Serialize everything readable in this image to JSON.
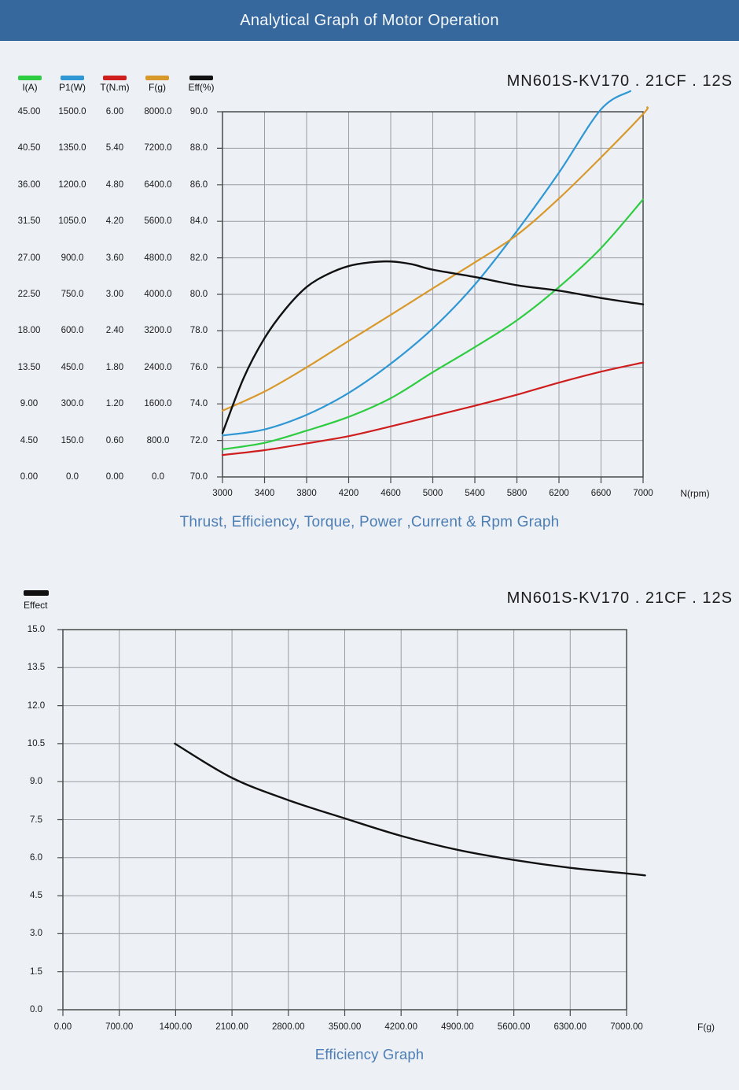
{
  "header": {
    "title": "Analytical Graph of Motor Operation",
    "bg_color": "#36689d"
  },
  "charts": [
    {
      "title": "MN601S-KV170 . 21CF . 12S",
      "caption": "Thrust, Efficiency, Torque, Power ,Current & Rpm Graph",
      "x_axis_unit": "N(rpm)",
      "x_tick_labels": [
        "3000",
        "3400",
        "3800",
        "4200",
        "4600",
        "5000",
        "5400",
        "5800",
        "6200",
        "6600",
        "7000"
      ],
      "tick_columns": [
        {
          "axis": "I(A)",
          "labels": [
            "45.00",
            "40.50",
            "36.00",
            "31.50",
            "27.00",
            "22.50",
            "18.00",
            "13.50",
            "9.00",
            "4.50",
            "0.00"
          ]
        },
        {
          "axis": "P1(W)",
          "labels": [
            "1500.0",
            "1350.0",
            "1200.0",
            "1050.0",
            "900.0",
            "750.0",
            "600.0",
            "450.0",
            "300.0",
            "150.0",
            "0.0"
          ]
        },
        {
          "axis": "T(N.m)",
          "labels": [
            "6.00",
            "5.40",
            "4.80",
            "4.20",
            "3.60",
            "3.00",
            "2.40",
            "1.80",
            "1.20",
            "0.60",
            "0.00"
          ]
        },
        {
          "axis": "F(g)",
          "labels": [
            "8000.0",
            "7200.0",
            "6400.0",
            "5600.0",
            "4800.0",
            "4000.0",
            "3200.0",
            "2400.0",
            "1600.0",
            "800.0",
            "0.0"
          ]
        },
        {
          "axis": "Eff(%)",
          "labels": [
            "90.0",
            "88.0",
            "86.0",
            "84.0",
            "82.0",
            "80.0",
            "78.0",
            "76.0",
            "74.0",
            "72.0",
            "70.0"
          ]
        }
      ],
      "legend": [
        {
          "label": "I(A)",
          "color": "#2ecc40"
        },
        {
          "label": "P1(W)",
          "color": "#2e97d4"
        },
        {
          "label": "T(N.m)",
          "color": "#cf1e1e"
        },
        {
          "label": "F(g)",
          "color": "#d8992a"
        },
        {
          "label": "Eff(%)",
          "color": "#111111"
        }
      ]
    },
    {
      "title": "MN601S-KV170 . 21CF . 12S",
      "caption": "Efficiency Graph",
      "x_axis_unit": "F(g)",
      "x_tick_labels": [
        "0.00",
        "700.00",
        "1400.00",
        "2100.00",
        "2800.00",
        "3500.00",
        "4200.00",
        "4900.00",
        "5600.00",
        "6300.00",
        "7000.00"
      ],
      "y_tick_labels": [
        "15.0",
        "13.5",
        "12.0",
        "10.5",
        "9.0",
        "7.5",
        "6.0",
        "4.5",
        "3.0",
        "1.5",
        "0.0"
      ],
      "legend": [
        {
          "label": "Effect",
          "color": "#111111"
        }
      ]
    }
  ],
  "chart_data": [
    {
      "type": "line",
      "title": "MN601S-KV170 . 21CF . 12S",
      "xlabel": "N(rpm)",
      "xlim": [
        3000,
        7000
      ],
      "grid": true,
      "legend_position": "top-left",
      "series": [
        {
          "name": "I(A)",
          "color": "#2ecc40",
          "axis_range": [
            0,
            45
          ],
          "x": [
            3000,
            3400,
            3800,
            4200,
            4600,
            5000,
            5400,
            5800,
            6200,
            6600,
            7000
          ],
          "values": [
            3.4,
            4.2,
            5.7,
            7.4,
            9.7,
            12.9,
            16.0,
            19.3,
            23.4,
            28.2,
            34.2
          ]
        },
        {
          "name": "P1(W)",
          "color": "#2e97d4",
          "axis_range": [
            0,
            1500
          ],
          "x": [
            3000,
            3400,
            3800,
            4200,
            4600,
            5000,
            5400,
            5800,
            6200,
            6600,
            6880
          ],
          "values": [
            170,
            195,
            255,
            345,
            465,
            610,
            790,
            1010,
            1250,
            1510,
            1585
          ]
        },
        {
          "name": "T(N.m)",
          "color": "#cf1e1e",
          "axis_range": [
            0,
            6
          ],
          "x": [
            3000,
            3400,
            3800,
            4200,
            4600,
            5000,
            5400,
            5800,
            6200,
            6600,
            7000
          ],
          "values": [
            0.36,
            0.44,
            0.55,
            0.67,
            0.83,
            1.0,
            1.17,
            1.35,
            1.55,
            1.73,
            1.88
          ]
        },
        {
          "name": "F(g)",
          "color": "#d8992a",
          "axis_range": [
            0,
            8000
          ],
          "x": [
            3000,
            3400,
            3800,
            4200,
            4600,
            5000,
            5400,
            5800,
            6200,
            6600,
            7000,
            7040
          ],
          "values": [
            1450,
            1870,
            2400,
            2980,
            3550,
            4130,
            4700,
            5300,
            6100,
            7000,
            7950,
            8100
          ]
        },
        {
          "name": "Eff(%)",
          "color": "#111111",
          "axis_range": [
            70,
            90
          ],
          "x": [
            3000,
            3200,
            3400,
            3600,
            3800,
            4000,
            4200,
            4400,
            4600,
            4800,
            5000,
            5400,
            5800,
            6200,
            6600,
            7000
          ],
          "values": [
            72.4,
            75.4,
            77.6,
            79.2,
            80.4,
            81.1,
            81.55,
            81.75,
            81.8,
            81.65,
            81.35,
            80.95,
            80.5,
            80.2,
            79.8,
            79.45
          ]
        }
      ]
    },
    {
      "type": "line",
      "title": "MN601S-KV170 . 21CF . 12S",
      "xlabel": "F(g)",
      "ylabel": "Effect",
      "xlim": [
        0,
        7000
      ],
      "ylim": [
        0,
        15
      ],
      "grid": true,
      "legend_position": "top-left",
      "series": [
        {
          "name": "Effect",
          "color": "#111111",
          "axis_range": [
            0,
            15
          ],
          "x": [
            1390,
            2100,
            2800,
            3500,
            4200,
            4900,
            5600,
            6300,
            7000,
            7230
          ],
          "values": [
            10.5,
            9.15,
            8.27,
            7.55,
            6.86,
            6.31,
            5.91,
            5.6,
            5.38,
            5.3
          ]
        }
      ]
    }
  ]
}
